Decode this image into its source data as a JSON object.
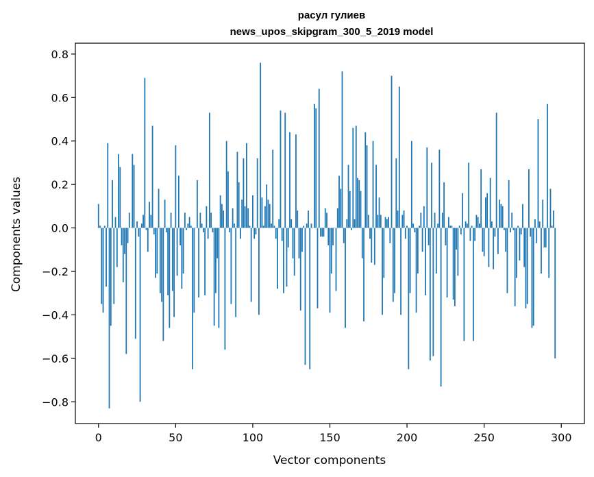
{
  "chart_data": {
    "type": "bar",
    "title": "расул гулиев",
    "subtitle": "news_upos_skipgram_300_5_2019 model",
    "xlabel": "Vector components",
    "ylabel": "Components values",
    "xlim": [
      -15,
      315
    ],
    "ylim": [
      -0.9,
      0.85
    ],
    "xticks": [
      0,
      50,
      100,
      150,
      200,
      250,
      300
    ],
    "xtick_labels": [
      "0",
      "50",
      "100",
      "150",
      "200",
      "250",
      "300"
    ],
    "yticks": [
      -0.8,
      -0.6,
      -0.4,
      -0.2,
      0.0,
      0.2,
      0.4,
      0.6,
      0.8
    ],
    "ytick_labels": [
      "−0.8",
      "−0.6",
      "−0.4",
      "−0.2",
      "0.0",
      "0.2",
      "0.4",
      "0.6",
      "0.8"
    ],
    "grid": false,
    "bar_color": "#1f77b4",
    "values": [
      0.11,
      0.01,
      -0.35,
      -0.39,
      0.01,
      -0.27,
      0.39,
      -0.83,
      -0.45,
      0.22,
      -0.35,
      0.05,
      -0.18,
      0.34,
      0.28,
      -0.08,
      -0.25,
      -0.12,
      -0.58,
      -0.07,
      0.07,
      0.0,
      0.34,
      0.29,
      -0.51,
      0.03,
      -0.04,
      -0.8,
      0.02,
      0.06,
      0.69,
      -0.01,
      -0.11,
      0.12,
      0.06,
      0.47,
      -0.03,
      -0.23,
      -0.21,
      0.18,
      -0.3,
      -0.34,
      -0.52,
      0.13,
      -0.02,
      -0.31,
      -0.46,
      0.07,
      -0.29,
      -0.41,
      0.38,
      -0.22,
      0.24,
      -0.08,
      -0.28,
      -0.21,
      0.07,
      -0.01,
      0.02,
      0.05,
      0.01,
      -0.65,
      -0.39,
      0.0,
      0.22,
      -0.32,
      0.07,
      0.02,
      -0.02,
      -0.31,
      0.1,
      -0.05,
      0.53,
      0.07,
      -0.02,
      -0.45,
      -0.3,
      -0.14,
      -0.46,
      0.15,
      0.11,
      0.08,
      -0.56,
      0.4,
      0.26,
      -0.02,
      -0.35,
      0.09,
      0.02,
      -0.41,
      0.35,
      0.21,
      -0.05,
      0.13,
      0.32,
      0.1,
      0.39,
      0.09,
      0.01,
      -0.34,
      0.15,
      -0.05,
      -0.03,
      0.32,
      -0.4,
      0.76,
      0.14,
      0.01,
      0.1,
      0.2,
      0.13,
      0.11,
      0.02,
      0.36,
      0.01,
      -0.05,
      -0.28,
      0.04,
      0.54,
      -0.06,
      -0.3,
      0.53,
      -0.27,
      -0.09,
      0.44,
      0.04,
      -0.14,
      -0.22,
      0.43,
      0.08,
      -0.14,
      -0.38,
      -0.11,
      0.01,
      -0.63,
      0.02,
      0.08,
      -0.65,
      0.02,
      0.0,
      0.57,
      0.55,
      -0.37,
      0.64,
      -0.04,
      -0.04,
      -0.04,
      0.09,
      0.07,
      -0.08,
      -0.39,
      -0.21,
      -0.08,
      0.0,
      -0.29,
      0.09,
      0.24,
      0.18,
      0.72,
      -0.07,
      -0.46,
      0.04,
      0.29,
      0.17,
      -0.01,
      0.46,
      0.04,
      0.47,
      0.23,
      0.22,
      0.17,
      -0.14,
      -0.43,
      0.44,
      0.38,
      0.06,
      -0.05,
      -0.16,
      0.4,
      -0.17,
      0.29,
      0.06,
      0.14,
      0.06,
      -0.4,
      -0.23,
      0.05,
      0.04,
      0.05,
      -0.07,
      0.7,
      -0.34,
      -0.3,
      0.32,
      0.08,
      0.65,
      -0.4,
      0.06,
      0.08,
      -0.05,
      0.01,
      -0.65,
      -0.3,
      0.4,
      0.02,
      -0.02,
      -0.39,
      -0.21,
      0.01,
      0.07,
      -0.11,
      0.1,
      -0.31,
      0.37,
      -0.08,
      -0.61,
      0.3,
      -0.59,
      0.07,
      -0.21,
      0.02,
      0.36,
      -0.73,
      0.07,
      0.21,
      -0.08,
      -0.32,
      0.05,
      0.01,
      0.01,
      -0.33,
      -0.36,
      -0.1,
      -0.22,
      0.01,
      -0.03,
      0.16,
      -0.52,
      0.03,
      0.02,
      0.3,
      -0.06,
      0.01,
      -0.52,
      -0.06,
      0.06,
      0.05,
      0.02,
      0.27,
      -0.11,
      -0.13,
      0.14,
      0.16,
      -0.18,
      0.23,
      0.03,
      -0.19,
      -0.04,
      0.53,
      -0.12,
      0.13,
      0.11,
      0.1,
      -0.01,
      -0.11,
      -0.3,
      0.22,
      -0.02,
      0.07,
      -0.01,
      -0.36,
      -0.23,
      0.01,
      -0.15,
      -0.03,
      0.11,
      -0.18,
      -0.37,
      -0.35,
      0.27,
      -0.04,
      -0.46,
      -0.45,
      0.04,
      -0.07,
      0.5,
      0.03,
      -0.21,
      0.13,
      -0.09,
      -0.09,
      0.57,
      -0.23,
      0.18,
      0.01,
      0.08,
      -0.6
    ]
  }
}
